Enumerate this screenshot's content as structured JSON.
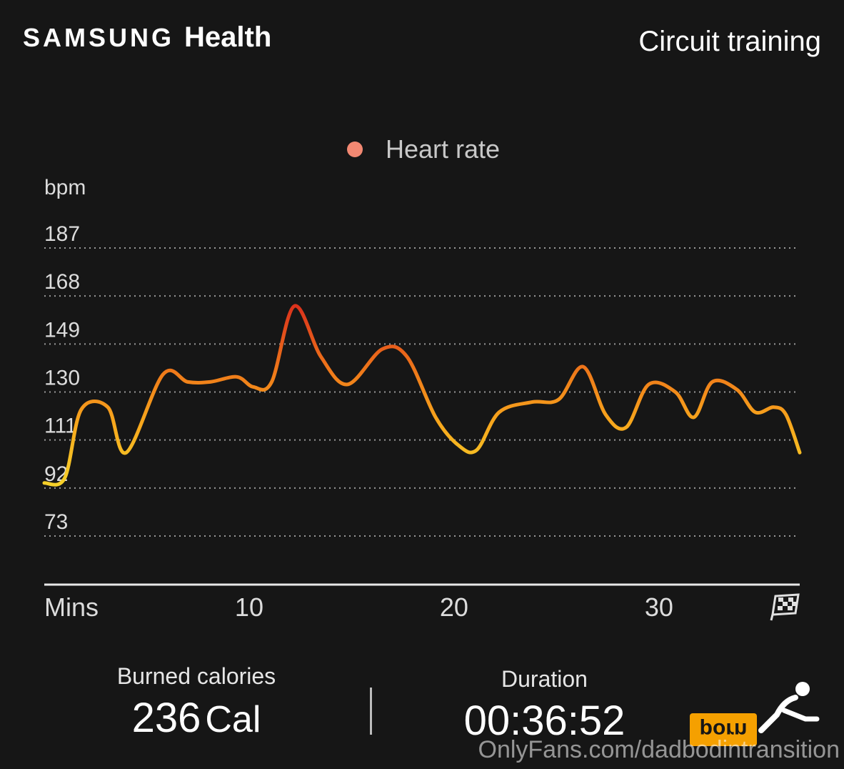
{
  "header": {
    "brand_samsung": "SAMSUNG",
    "brand_health": "Health",
    "workout_type": "Circuit training"
  },
  "legend": {
    "label": "Heart rate",
    "color": "#f28872"
  },
  "summary": {
    "calories_label": "Burned calories",
    "calories_value": "236",
    "calories_unit": "Cal",
    "duration_label": "Duration",
    "duration_value": "00:36:52"
  },
  "watermark": {
    "text": "OnlyFans.com/dadbodintransition",
    "logo_text": "porn"
  },
  "icons": [
    "checkered-flag-icon",
    "runner-icon"
  ],
  "colors": {
    "background": "#161616",
    "line_low": "#f5d22a",
    "line_mid": "#f79a1c",
    "line_high": "#d8261c"
  },
  "chart_data": {
    "type": "line",
    "title": "",
    "xlabel": "Mins",
    "ylabel": "bpm",
    "x_ticks": [
      10,
      20,
      30
    ],
    "y_ticks": [
      73,
      92,
      111,
      130,
      149,
      168,
      187
    ],
    "ylim": [
      73,
      187
    ],
    "xlim": [
      0,
      36.87
    ],
    "grid": true,
    "legend_position": "top-center",
    "series": [
      {
        "name": "Heart rate",
        "x": [
          0,
          1,
          1.8,
          3.1,
          4,
          5.8,
          7,
          8.1,
          9.4,
          10.2,
          11.1,
          12.2,
          13.5,
          14.8,
          16.5,
          17.7,
          19.1,
          20.2,
          21.1,
          22.2,
          23.8,
          25.1,
          26.3,
          27.4,
          28.4,
          29.5,
          30.8,
          31.7,
          32.6,
          33.8,
          34.7,
          35.6,
          36.2,
          36.87
        ],
        "values": [
          94,
          96,
          123,
          124,
          106,
          137,
          134,
          134,
          136,
          132,
          134,
          164,
          144,
          133,
          147,
          144,
          120,
          109,
          107,
          122,
          126,
          127,
          140,
          121,
          116,
          133,
          130,
          120,
          134,
          131,
          122,
          124,
          121,
          106
        ]
      }
    ]
  }
}
